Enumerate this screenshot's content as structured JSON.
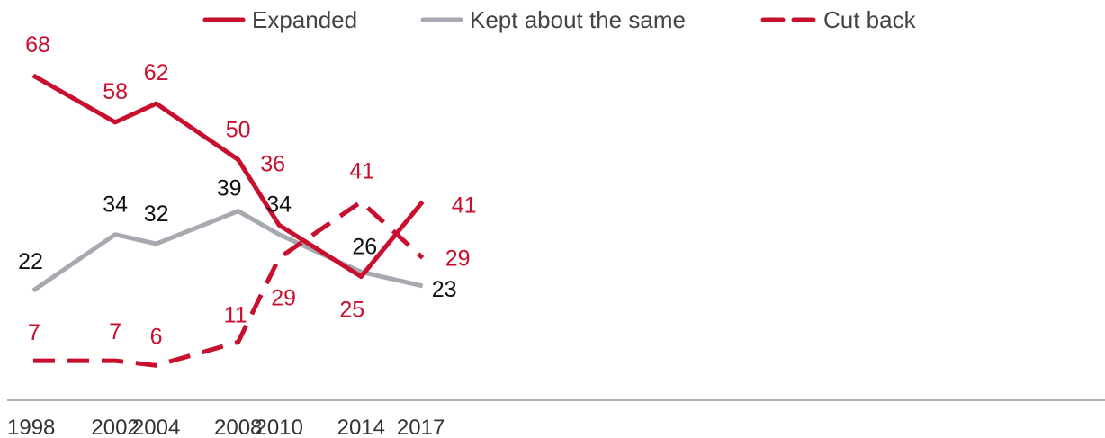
{
  "chart_data": {
    "type": "line",
    "title": "",
    "xlabel": "",
    "ylabel": "",
    "x": [
      1998,
      2002,
      2004,
      2008,
      2010,
      2014,
      2017
    ],
    "ylim": [
      0,
      80
    ],
    "grid": false,
    "legend_placement": "top",
    "series": [
      {
        "name": "Expanded",
        "values": [
          68,
          58,
          62,
          50,
          36,
          25,
          41
        ],
        "color": "#c8102e",
        "dash": "solid"
      },
      {
        "name": "Kept about the same",
        "values": [
          22,
          34,
          32,
          39,
          34,
          26,
          23
        ],
        "color": "#a7a9b0",
        "dash": "solid",
        "label_color": "#111111"
      },
      {
        "name": "Cut back",
        "values": [
          7,
          7,
          6,
          11,
          29,
          41,
          29
        ],
        "color": "#c8102e",
        "dash": "dashed"
      }
    ]
  }
}
